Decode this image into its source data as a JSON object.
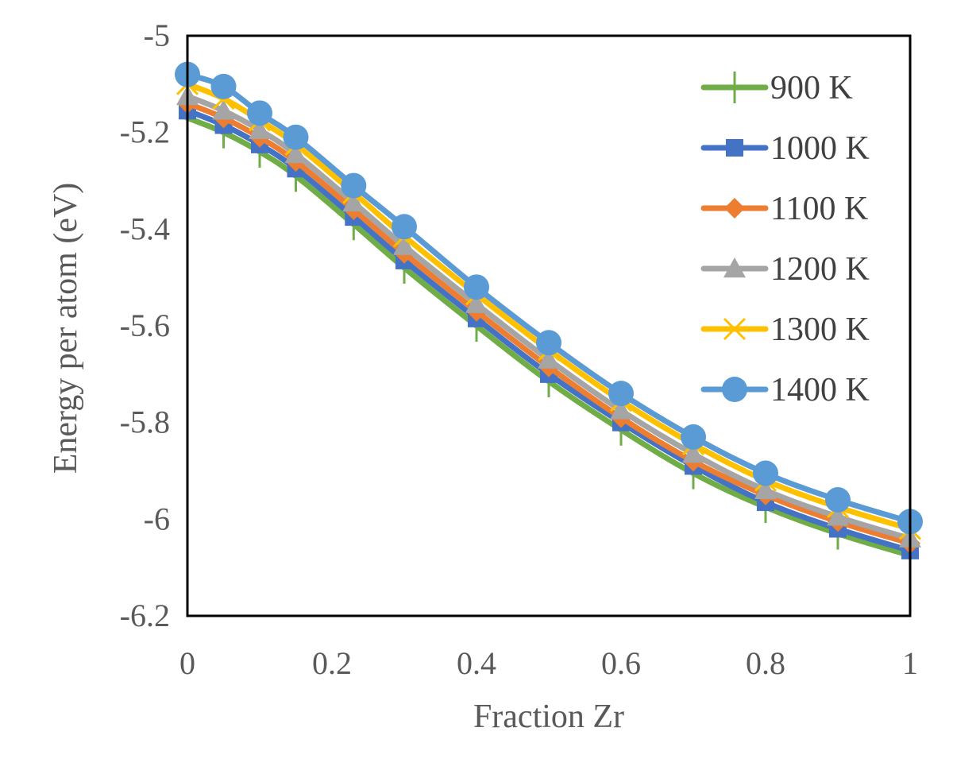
{
  "chart_data": {
    "type": "line",
    "title": "",
    "xlabel": "Fraction Zr",
    "ylabel": "Energy per atom (eV)",
    "xlim": [
      0,
      1
    ],
    "ylim": [
      -6.2,
      -5
    ],
    "xticks": [
      0,
      0.2,
      0.4,
      0.6,
      0.8,
      1
    ],
    "yticks": [
      -5,
      -5.2,
      -5.4,
      -5.6,
      -5.8,
      -6,
      -6.2
    ],
    "xtick_labels": [
      "0",
      "0.2",
      "0.4",
      "0.6",
      "0.8",
      "1"
    ],
    "ytick_labels": [
      "-5",
      "-5.2",
      "-5.4",
      "-5.6",
      "-5.8",
      "-6",
      "-6.2"
    ],
    "grid": false,
    "legend_position": "top-right",
    "x": [
      0,
      0.05,
      0.1,
      0.15,
      0.23,
      0.3,
      0.4,
      0.5,
      0.6,
      0.7,
      0.8,
      0.9,
      1.0
    ],
    "series": [
      {
        "name": "900 K",
        "color": "#70AD47",
        "marker": "plus",
        "values": [
          -5.17,
          -5.2,
          -5.24,
          -5.29,
          -5.39,
          -5.48,
          -5.6,
          -5.715,
          -5.815,
          -5.905,
          -5.975,
          -6.03,
          -6.075
        ]
      },
      {
        "name": "1000 K",
        "color": "#4472C4",
        "marker": "square",
        "values": [
          -5.155,
          -5.185,
          -5.225,
          -5.275,
          -5.375,
          -5.465,
          -5.585,
          -5.7,
          -5.8,
          -5.89,
          -5.965,
          -6.02,
          -6.065
        ]
      },
      {
        "name": "1100 K",
        "color": "#ED7D31",
        "marker": "diamond",
        "values": [
          -5.14,
          -5.17,
          -5.21,
          -5.26,
          -5.36,
          -5.45,
          -5.57,
          -5.685,
          -5.79,
          -5.88,
          -5.95,
          -6.005,
          -6.05
        ]
      },
      {
        "name": "1200 K",
        "color": "#A5A5A5",
        "marker": "triangle",
        "values": [
          -5.125,
          -5.155,
          -5.195,
          -5.245,
          -5.345,
          -5.435,
          -5.555,
          -5.67,
          -5.775,
          -5.865,
          -5.94,
          -5.995,
          -6.04
        ]
      },
      {
        "name": "1300 K",
        "color": "#FFC000",
        "marker": "x",
        "values": [
          -5.1,
          -5.13,
          -5.175,
          -5.225,
          -5.325,
          -5.415,
          -5.535,
          -5.65,
          -5.755,
          -5.845,
          -5.92,
          -5.975,
          -6.02
        ]
      },
      {
        "name": "1400 K",
        "color": "#5B9BD5",
        "marker": "circle",
        "values": [
          -5.08,
          -5.105,
          -5.16,
          -5.21,
          -5.31,
          -5.395,
          -5.52,
          -5.635,
          -5.74,
          -5.83,
          -5.905,
          -5.96,
          -6.005
        ]
      }
    ]
  }
}
